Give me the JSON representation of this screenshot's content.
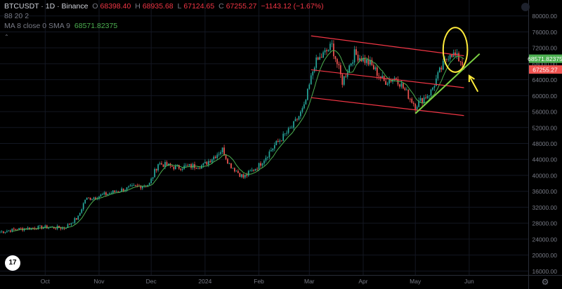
{
  "legend": {
    "symbol": "BTCUSDT · 1D · Binance",
    "open_label": "O",
    "open": "68398.40",
    "high_label": "H",
    "high": "68935.68",
    "low_label": "L",
    "low": "67124.65",
    "close_label": "C",
    "close": "67255.27",
    "change": "−1143.12 (−1.67%)",
    "line2": "88 20 2",
    "ma_label": "MA 8 close 0 SMA 9",
    "ma_value": "68571.82375",
    "collapse_icon": "chevron-up-icon"
  },
  "badges": {
    "ma_price": "68571.82375",
    "last_price": "67255.27"
  },
  "logo_text": "17",
  "colors": {
    "background": "#000000",
    "up": "#26a69a",
    "down": "#ef5350",
    "ma": "#4caf50",
    "channel": "#f23645",
    "support": "#7cd143",
    "highlight": "#ffeb3b",
    "grid": "#131722",
    "axis_text": "#787b86"
  },
  "chart_data": {
    "type": "candlestick",
    "title": "",
    "xlabel": "",
    "ylabel": "",
    "ylim": [
      15000,
      84000
    ],
    "y_ticks": [
      80000,
      76000,
      72000,
      68000,
      64000,
      60000,
      56000,
      52000,
      48000,
      44000,
      40000,
      36000,
      32000,
      28000,
      24000,
      20000,
      16000
    ],
    "x_ticks": [
      {
        "label": "Oct",
        "date": "2023-10-01"
      },
      {
        "label": "Nov",
        "date": "2023-11-01"
      },
      {
        "label": "Dec",
        "date": "2023-12-01"
      },
      {
        "label": "2024",
        "date": "2024-01-01"
      },
      {
        "label": "Feb",
        "date": "2024-02-01"
      },
      {
        "label": "Mar",
        "date": "2024-03-01"
      },
      {
        "label": "Apr",
        "date": "2024-04-01"
      },
      {
        "label": "May",
        "date": "2024-05-01"
      },
      {
        "label": "Jun",
        "date": "2024-06-01"
      }
    ],
    "x_range": [
      "2023-09-05",
      "2024-07-05"
    ],
    "key_points": [
      [
        "2023-09-05",
        25800
      ],
      [
        "2023-09-15",
        26500
      ],
      [
        "2023-09-30",
        27000
      ],
      [
        "2023-10-12",
        26800
      ],
      [
        "2023-10-20",
        29500
      ],
      [
        "2023-10-24",
        34000
      ],
      [
        "2023-11-01",
        34800
      ],
      [
        "2023-11-15",
        36500
      ],
      [
        "2023-11-30",
        37800
      ],
      [
        "2023-12-05",
        43000
      ],
      [
        "2023-12-15",
        42000
      ],
      [
        "2023-12-31",
        42500
      ],
      [
        "2024-01-11",
        46500
      ],
      [
        "2024-01-15",
        42800
      ],
      [
        "2024-01-23",
        39500
      ],
      [
        "2024-02-01",
        42500
      ],
      [
        "2024-02-10",
        47500
      ],
      [
        "2024-02-20",
        52000
      ],
      [
        "2024-02-27",
        57000
      ],
      [
        "2024-03-04",
        68000
      ],
      [
        "2024-03-14",
        72500
      ],
      [
        "2024-03-20",
        63500
      ],
      [
        "2024-03-27",
        70500
      ],
      [
        "2024-04-05",
        68000
      ],
      [
        "2024-04-13",
        63500
      ],
      [
        "2024-04-20",
        64500
      ],
      [
        "2024-05-01",
        57500
      ],
      [
        "2024-05-10",
        61000
      ],
      [
        "2024-05-15",
        66000
      ],
      [
        "2024-05-21",
        71000
      ],
      [
        "2024-05-27",
        68800
      ],
      [
        "2024-05-29",
        67255
      ]
    ],
    "ma_period": 8,
    "annotations": [
      {
        "kind": "line",
        "name": "channel-top",
        "color": "#f23645",
        "points": [
          [
            "2024-03-02",
            75000
          ],
          [
            "2024-05-29",
            70000
          ]
        ]
      },
      {
        "kind": "line",
        "name": "channel-mid",
        "color": "#f23645",
        "points": [
          [
            "2024-03-02",
            66500
          ],
          [
            "2024-05-29",
            62000
          ]
        ]
      },
      {
        "kind": "line",
        "name": "channel-bottom",
        "color": "#f23645",
        "points": [
          [
            "2024-03-02",
            59500
          ],
          [
            "2024-05-29",
            55000
          ]
        ]
      },
      {
        "kind": "line",
        "name": "support-trend",
        "color": "#7cd143",
        "points": [
          [
            "2024-05-01",
            55500
          ],
          [
            "2024-06-07",
            70500
          ]
        ]
      },
      {
        "kind": "ellipse",
        "name": "highlight-circle",
        "color": "#ffeb3b",
        "center": [
          "2024-05-24",
          71500
        ],
        "rx_days": 7,
        "ry_value": 5600
      },
      {
        "kind": "arrow",
        "name": "pointer-arrow",
        "color": "#ffeb3b",
        "from": [
          "2024-06-06",
          61000
        ],
        "to": [
          "2024-06-01",
          65000
        ]
      }
    ]
  }
}
